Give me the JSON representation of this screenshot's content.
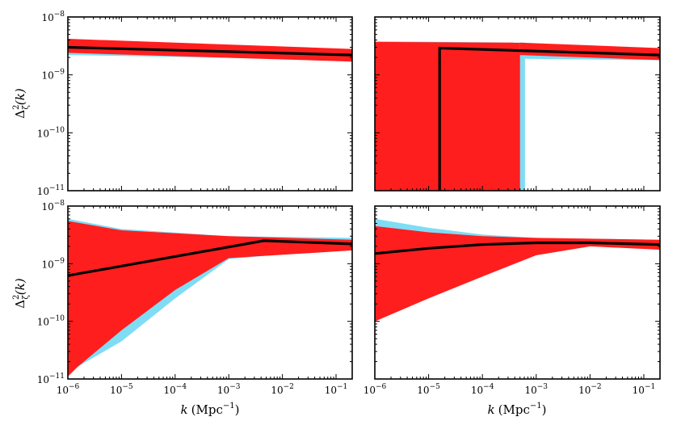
{
  "chart_data": [
    {
      "type": "area",
      "panel": "top-left",
      "xscale": "log",
      "yscale": "log",
      "xlim": [
        1e-06,
        0.2
      ],
      "ylim": [
        1e-11,
        1e-08
      ],
      "ylabel": "Δ²ζ(k)",
      "xlabel": "",
      "series": [
        {
          "name": "blue band",
          "color": "#7fdcf5",
          "upper": [
            [
              1e-06,
              3.5e-09
            ],
            [
              0.2,
              2.6e-09
            ]
          ],
          "lower": [
            [
              1e-06,
              2.2e-09
            ],
            [
              0.2,
              1.8e-09
            ]
          ]
        },
        {
          "name": "red band",
          "color": "#ff1e1e",
          "upper": [
            [
              1e-06,
              4.2e-09
            ],
            [
              0.2,
              2.8e-09
            ]
          ],
          "lower": [
            [
              1e-06,
              2.4e-09
            ],
            [
              0.2,
              1.7e-09
            ]
          ]
        },
        {
          "name": "best fit",
          "color": "#000000",
          "points": [
            [
              1e-06,
              3e-09
            ],
            [
              0.2,
              2.2e-09
            ]
          ]
        }
      ]
    },
    {
      "type": "area",
      "panel": "top-right",
      "xscale": "log",
      "yscale": "log",
      "xlim": [
        1e-06,
        0.2
      ],
      "ylim": [
        1e-11,
        1e-08
      ],
      "ylabel": "",
      "xlabel": "",
      "series": [
        {
          "name": "blue band",
          "color": "#7fdcf5",
          "upper": [
            [
              1e-06,
              3.8e-09
            ],
            [
              0.00062,
              3.6e-09
            ]
          ],
          "lower": [
            [
              1e-06,
              1e-11
            ],
            [
              0.00062,
              1e-11
            ]
          ]
        },
        {
          "name": "blue band",
          "color": "#7fdcf5",
          "upper": [
            [
              0.00062,
              2.8e-09
            ],
            [
              0.2,
              2.6e-09
            ]
          ],
          "lower": [
            [
              0.00062,
              1.9e-09
            ],
            [
              0.2,
              1.8e-09
            ]
          ]
        },
        {
          "name": "red band",
          "color": "#ff1e1e",
          "upper": [
            [
              1e-06,
              3.7e-09
            ],
            [
              0.0005,
              3.6e-09
            ]
          ],
          "lower": [
            [
              1e-06,
              1e-11
            ],
            [
              0.0005,
              1e-11
            ]
          ]
        },
        {
          "name": "red band",
          "color": "#ff1e1e",
          "upper": [
            [
              0.0005,
              3.6e-09
            ],
            [
              0.2,
              2.9e-09
            ]
          ],
          "lower": [
            [
              0.0005,
              2.2e-09
            ],
            [
              0.2,
              1.8e-09
            ]
          ]
        },
        {
          "name": "best fit",
          "color": "#000000",
          "points": [
            [
              1.6e-05,
              1e-11
            ],
            [
              1.6e-05,
              2.9e-09
            ],
            [
              0.2,
              2.2e-09
            ]
          ]
        }
      ]
    },
    {
      "type": "area",
      "panel": "bottom-left",
      "xscale": "log",
      "yscale": "log",
      "xlim": [
        1e-06,
        0.2
      ],
      "ylim": [
        1e-11,
        1e-08
      ],
      "ylabel": "Δ²ζ(k)",
      "xlabel": "k (Mpc⁻¹)",
      "series": [
        {
          "name": "blue band",
          "color": "#7fdcf5",
          "upper": [
            [
              1e-06,
              6e-09
            ],
            [
              1e-05,
              4e-09
            ],
            [
              0.001,
              3e-09
            ],
            [
              0.2,
              2.8e-09
            ]
          ],
          "lower": [
            [
              1e-06,
              1.3e-11
            ],
            [
              1e-05,
              4.5e-11
            ],
            [
              0.0001,
              2.5e-10
            ],
            [
              0.001,
              1.2e-09
            ],
            [
              0.2,
              1.9e-09
            ]
          ]
        },
        {
          "name": "red band",
          "color": "#ff1e1e",
          "upper": [
            [
              1e-06,
              5.5e-09
            ],
            [
              1e-05,
              3.8e-09
            ],
            [
              0.001,
              3e-09
            ],
            [
              0.2,
              2.6e-09
            ]
          ],
          "lower": [
            [
              1e-06,
              1.1e-11
            ],
            [
              1.5e-06,
              1.6e-11
            ],
            [
              1e-05,
              7e-11
            ],
            [
              0.0001,
              3.5e-10
            ],
            [
              0.001,
              1.25e-09
            ],
            [
              0.2,
              1.7e-09
            ]
          ]
        },
        {
          "name": "best fit",
          "color": "#000000",
          "points": [
            [
              1e-06,
              6.2e-10
            ],
            [
              0.0045,
              2.5e-09
            ],
            [
              0.2,
              2.2e-09
            ]
          ]
        }
      ]
    },
    {
      "type": "area",
      "panel": "bottom-right",
      "xscale": "log",
      "yscale": "log",
      "xlim": [
        1e-06,
        0.2
      ],
      "ylim": [
        1e-11,
        1e-08
      ],
      "ylabel": "",
      "xlabel": "k (Mpc⁻¹)",
      "series": [
        {
          "name": "blue band",
          "color": "#7fdcf5",
          "upper": [
            [
              1e-06,
              6e-09
            ],
            [
              1e-05,
              4.2e-09
            ],
            [
              0.0001,
              3.2e-09
            ],
            [
              0.001,
              2.8e-09
            ],
            [
              0.2,
              2.6e-09
            ]
          ],
          "lower": [
            [
              1e-06,
              1.3e-10
            ],
            [
              1e-05,
              3e-10
            ],
            [
              0.0001,
              7e-10
            ],
            [
              0.001,
              1.4e-09
            ],
            [
              0.01,
              2e-09
            ],
            [
              0.2,
              1.9e-09
            ]
          ]
        },
        {
          "name": "red band",
          "color": "#ff1e1e",
          "upper": [
            [
              1e-06,
              4.5e-09
            ],
            [
              1e-05,
              3.5e-09
            ],
            [
              0.0001,
              3e-09
            ],
            [
              0.001,
              2.8e-09
            ],
            [
              0.2,
              2.6e-09
            ]
          ],
          "lower": [
            [
              1e-06,
              1e-10
            ],
            [
              1e-05,
              2.5e-10
            ],
            [
              0.0001,
              6e-10
            ],
            [
              0.001,
              1.4e-09
            ],
            [
              0.01,
              2e-09
            ],
            [
              0.2,
              1.75e-09
            ]
          ]
        },
        {
          "name": "best fit",
          "color": "#000000",
          "points": [
            [
              1e-06,
              1.5e-09
            ],
            [
              1e-05,
              1.85e-09
            ],
            [
              0.0001,
              2.15e-09
            ],
            [
              0.001,
              2.3e-09
            ],
            [
              0.01,
              2.3e-09
            ],
            [
              0.2,
              2.15e-09
            ]
          ]
        }
      ]
    }
  ],
  "ticks": {
    "x_labels": [
      {
        "exp": -6,
        "base": "10",
        "sup": "−6"
      },
      {
        "exp": -5,
        "base": "10",
        "sup": "−5"
      },
      {
        "exp": -4,
        "base": "10",
        "sup": "−4"
      },
      {
        "exp": -3,
        "base": "10",
        "sup": "−3"
      },
      {
        "exp": -2,
        "base": "10",
        "sup": "−2"
      },
      {
        "exp": -1,
        "base": "10",
        "sup": "−1"
      }
    ],
    "y_labels": [
      {
        "exp": -8,
        "base": "10",
        "sup": "−8"
      },
      {
        "exp": -9,
        "base": "10",
        "sup": "−9"
      },
      {
        "exp": -10,
        "base": "10",
        "sup": "−10"
      },
      {
        "exp": -11,
        "base": "10",
        "sup": "−11"
      }
    ]
  },
  "labels": {
    "ylabel_delta": "Δ",
    "ylabel_sup": "2",
    "ylabel_sub": "ζ",
    "ylabel_arg": "(k)",
    "xlabel_k": "k",
    "xlabel_units": "(Mpc",
    "xlabel_units_sup": "−1",
    "xlabel_close": ")"
  }
}
